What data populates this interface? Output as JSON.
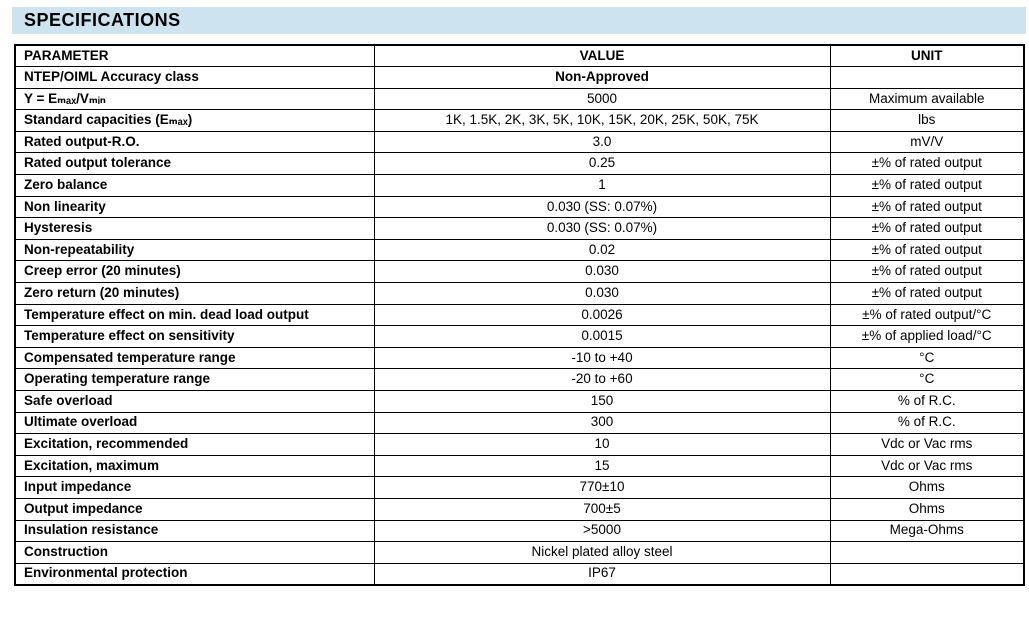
{
  "page": {
    "title": "SPECIFICATIONS",
    "title_band_color": "#cde3ef",
    "border_color": "#000000",
    "background_color": "#ffffff"
  },
  "table": {
    "columns": [
      "PARAMETER",
      "VALUE",
      "UNIT"
    ],
    "rows": [
      {
        "param": "NTEP/OIML Accuracy class",
        "value": "Non-Approved",
        "unit": "",
        "value_bold": true
      },
      {
        "param": "Y = Eₘₐₓ/Vₘᵢₙ",
        "value": "5000",
        "unit": "Maximum available"
      },
      {
        "param": "Standard capacities (Eₘₐₓ)",
        "value": "1K, 1.5K, 2K, 3K, 5K, 10K, 15K, 20K, 25K, 50K, 75K",
        "unit": "lbs"
      },
      {
        "param": "Rated output-R.O.",
        "value": "3.0",
        "unit": "mV/V"
      },
      {
        "param": "Rated output tolerance",
        "value": "0.25",
        "unit": "±% of rated output"
      },
      {
        "param": "Zero balance",
        "value": "1",
        "unit": "±% of rated output"
      },
      {
        "param": "Non linearity",
        "value": "0.030 (SS: 0.07%)",
        "unit": "±% of rated output"
      },
      {
        "param": "Hysteresis",
        "value": "0.030 (SS: 0.07%)",
        "unit": "±% of rated output"
      },
      {
        "param": "Non-repeatability",
        "value": "0.02",
        "unit": "±% of rated output"
      },
      {
        "param": "Creep error (20 minutes)",
        "value": "0.030",
        "unit": "±% of rated output"
      },
      {
        "param": "Zero return (20 minutes)",
        "value": "0.030",
        "unit": "±% of rated output"
      },
      {
        "param": "Temperature effect on min. dead load output",
        "value": "0.0026",
        "unit": "±% of rated output/°C"
      },
      {
        "param": "Temperature effect on sensitivity",
        "value": "0.0015",
        "unit": "±% of applied load/°C"
      },
      {
        "param": "Compensated temperature range",
        "value": "-10 to +40",
        "unit": "°C"
      },
      {
        "param": "Operating temperature range",
        "value": "-20 to +60",
        "unit": "°C"
      },
      {
        "param": "Safe overload",
        "value": "150",
        "unit": "% of R.C."
      },
      {
        "param": "Ultimate overload",
        "value": "300",
        "unit": "% of R.C."
      },
      {
        "param": "Excitation, recommended",
        "value": "10",
        "unit": "Vdc or Vac rms"
      },
      {
        "param": "Excitation, maximum",
        "value": "15",
        "unit": "Vdc or Vac rms"
      },
      {
        "param": "Input impedance",
        "value": "770±10",
        "unit": "Ohms"
      },
      {
        "param": "Output impedance",
        "value": "700±5",
        "unit": "Ohms"
      },
      {
        "param": "Insulation resistance",
        "value": ">5000",
        "unit": "Mega-Ohms"
      },
      {
        "param": "Construction",
        "value": "Nickel plated alloy steel",
        "unit": ""
      },
      {
        "param": "Environmental protection",
        "value": "IP67",
        "unit": ""
      }
    ]
  }
}
